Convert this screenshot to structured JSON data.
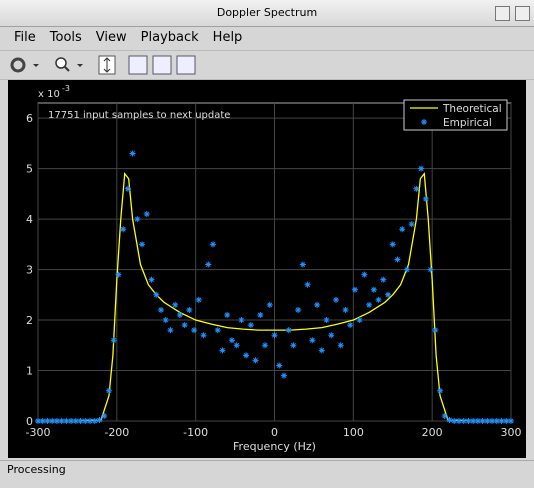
{
  "window": {
    "title": "Doppler Spectrum",
    "menu": [
      "File",
      "Tools",
      "View",
      "Playback",
      "Help"
    ],
    "status": "Processing"
  },
  "chart_data": {
    "type": "line",
    "y_exponent_base": "x 10",
    "y_exponent": "-3",
    "annotation": "17751 input samples to next update",
    "x_label": "Frequency (Hz)",
    "xlim": [
      -300,
      300
    ],
    "xticks": [
      -300,
      -200,
      -100,
      0,
      100,
      200,
      300
    ],
    "ylim": [
      0,
      6.3
    ],
    "yticks": [
      0,
      1,
      2,
      3,
      4,
      5,
      6
    ],
    "grid": true,
    "legend": "upper right",
    "series": [
      {
        "name": "Theoretical",
        "color": "#ffff00",
        "marker": "line",
        "x": [
          -300,
          -250,
          -220,
          -210,
          -205,
          -200,
          -195,
          -190,
          -185,
          -180,
          -170,
          -160,
          -150,
          -140,
          -120,
          -100,
          -80,
          -60,
          -40,
          -20,
          0,
          20,
          40,
          60,
          80,
          100,
          120,
          140,
          150,
          160,
          170,
          180,
          185,
          190,
          195,
          200,
          205,
          210,
          220,
          250,
          300
        ],
        "values": [
          0,
          0,
          0.02,
          0.5,
          1.3,
          2.8,
          4.0,
          4.9,
          4.8,
          4.0,
          3.1,
          2.7,
          2.5,
          2.35,
          2.15,
          2.0,
          1.92,
          1.85,
          1.82,
          1.8,
          1.8,
          1.8,
          1.82,
          1.85,
          1.92,
          2.0,
          2.15,
          2.35,
          2.5,
          2.7,
          3.1,
          4.0,
          4.8,
          4.9,
          4.0,
          2.8,
          1.3,
          0.5,
          0.02,
          0,
          0
        ]
      },
      {
        "name": "Empirical",
        "color": "#1e90ff",
        "marker": "asterisk",
        "x": [
          -300,
          -294,
          -288,
          -282,
          -276,
          -270,
          -264,
          -258,
          -252,
          -246,
          -240,
          -234,
          -228,
          -222,
          -216,
          -210,
          -204,
          -198,
          -192,
          -186,
          -180,
          -174,
          -168,
          -162,
          -156,
          -150,
          -144,
          -138,
          -132,
          -126,
          -120,
          -114,
          -108,
          -102,
          -96,
          -90,
          -84,
          -78,
          -72,
          -66,
          -60,
          -54,
          -48,
          -42,
          -36,
          -30,
          -24,
          -18,
          -12,
          -6,
          0,
          6,
          12,
          18,
          24,
          30,
          36,
          42,
          48,
          54,
          60,
          66,
          72,
          78,
          84,
          90,
          96,
          102,
          108,
          114,
          120,
          126,
          132,
          138,
          144,
          150,
          156,
          162,
          168,
          174,
          180,
          186,
          192,
          198,
          204,
          210,
          216,
          222,
          228,
          234,
          240,
          246,
          252,
          258,
          264,
          270,
          276,
          282,
          288,
          294,
          300
        ],
        "values": [
          0,
          0,
          0,
          0,
          0,
          0,
          0,
          0,
          0,
          0,
          0,
          0,
          0,
          0.02,
          0.1,
          0.6,
          1.6,
          2.9,
          3.8,
          4.6,
          5.3,
          4.0,
          3.5,
          4.1,
          2.8,
          2.5,
          2.2,
          2.0,
          1.8,
          2.3,
          2.1,
          1.9,
          2.2,
          1.8,
          2.4,
          1.7,
          3.1,
          3.5,
          1.8,
          1.4,
          2.1,
          1.6,
          1.5,
          2.0,
          1.3,
          1.9,
          1.2,
          2.1,
          1.5,
          2.3,
          1.7,
          1.1,
          0.9,
          1.8,
          1.5,
          2.2,
          3.1,
          2.7,
          1.6,
          2.3,
          1.4,
          2.0,
          1.7,
          2.4,
          1.5,
          2.2,
          1.9,
          2.6,
          2.0,
          2.9,
          2.3,
          2.6,
          2.4,
          2.8,
          2.5,
          3.5,
          3.2,
          3.8,
          3.0,
          3.9,
          4.6,
          5.0,
          4.4,
          3.0,
          1.8,
          0.6,
          0.1,
          0.02,
          0,
          0,
          0,
          0,
          0,
          0,
          0,
          0,
          0,
          0,
          0,
          0,
          0
        ]
      }
    ]
  }
}
